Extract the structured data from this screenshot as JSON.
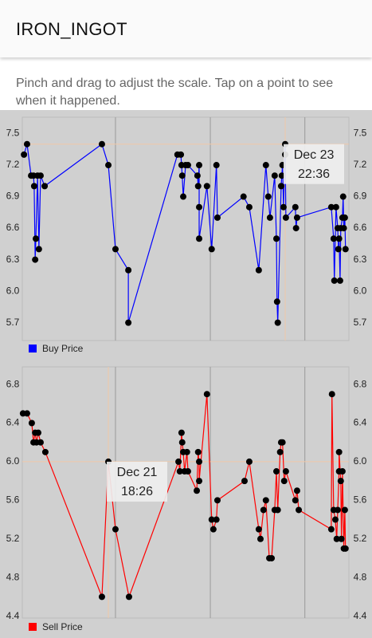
{
  "header": {
    "title": "IRON_INGOT"
  },
  "instructions": "Pinch and drag to adjust the scale. Tap on a point to see when it happened.",
  "chart_data": [
    {
      "type": "line",
      "legend": "bottom-left",
      "grid": "x",
      "marker_color": "#000000",
      "xlim": [
        0,
        96.4
      ],
      "xticks": [
        27.5,
        55.5,
        83.4
      ],
      "ylim": [
        5.53,
        7.58
      ],
      "yticks": [
        7.5,
        7.2,
        6.9,
        6.6,
        6.3,
        {
          "value": 6.0,
          "label": "6.0"
        },
        5.7
      ],
      "annotation": {
        "lines": [
          "Dec 23",
          "22:36"
        ],
        "x": 77.6,
        "y": 7.4
      },
      "series": [
        {
          "name": "Buy Price",
          "color": "#0000ff",
          "x": [
            0.5,
            1.4,
            2.6,
            3.3,
            3.5,
            3.8,
            4.0,
            4.5,
            4.9,
            5.4,
            6.6,
            23.5,
            25.4,
            27.5,
            31.3,
            31.3,
            45.8,
            46.8,
            47.0,
            47.2,
            47.5,
            48.2,
            48.9,
            51.7,
            51.9,
            52.2,
            52.2,
            52.2,
            54.5,
            55.9,
            57.3,
            57.6,
            65.3,
            67.0,
            69.8,
            71.9,
            72.6,
            73.1,
            74.5,
            75.0,
            75.2,
            75.4,
            76.4,
            76.6,
            76.8,
            77.1,
            77.6,
            77.6,
            77.8,
            80.6,
            80.8,
            81.1,
            91.2,
            91.9,
            92.1,
            92.6,
            93.1,
            93.3,
            93.5,
            93.8,
            94.0,
            94.5,
            94.7,
            94.9,
            95.2,
            95.4
          ],
          "values": [
            7.3,
            7.4,
            7.1,
            7.1,
            7.0,
            6.3,
            6.5,
            7.1,
            6.4,
            7.1,
            7.0,
            7.4,
            7.2,
            6.4,
            6.2,
            5.7,
            7.3,
            7.3,
            7.2,
            7.1,
            6.9,
            7.2,
            7.2,
            7.1,
            7.0,
            7.2,
            6.8,
            6.5,
            7.0,
            6.4,
            7.2,
            6.7,
            6.9,
            6.8,
            6.2,
            7.2,
            6.9,
            6.7,
            7.1,
            6.5,
            5.9,
            5.7,
            7.0,
            7.1,
            7.2,
            6.8,
            7.4,
            7.3,
            6.7,
            6.8,
            6.6,
            6.7,
            6.8,
            6.5,
            6.1,
            6.8,
            6.6,
            6.4,
            6.5,
            6.1,
            6.6,
            6.7,
            6.9,
            6.6,
            6.7,
            6.4
          ]
        }
      ]
    },
    {
      "type": "line",
      "legend": "bottom-left",
      "grid": "x",
      "marker_color": "#000000",
      "xlim": [
        0,
        96.4
      ],
      "xticks": [
        27.5,
        55.5,
        83.4
      ],
      "ylim": [
        4.38,
        6.9
      ],
      "yticks": [
        6.8,
        6.4,
        {
          "value": 6.0,
          "label": "6.0"
        },
        5.6,
        5.2,
        4.8,
        4.4
      ],
      "annotation": {
        "lines": [
          "Dec 21",
          "18:26"
        ],
        "x": 25.4,
        "y": 6.0
      },
      "series": [
        {
          "name": "Sell Price",
          "color": "#ff0000",
          "x": [
            0.2,
            1.4,
            2.8,
            3.3,
            3.8,
            4.2,
            4.7,
            5.4,
            6.8,
            23.5,
            25.4,
            27.5,
            31.5,
            46.1,
            46.5,
            47.0,
            47.2,
            47.5,
            47.9,
            48.6,
            48.9,
            51.5,
            51.9,
            52.2,
            52.2,
            54.5,
            55.9,
            56.4,
            57.3,
            57.6,
            65.6,
            67.0,
            69.8,
            70.3,
            71.2,
            71.9,
            72.9,
            73.6,
            74.5,
            75.0,
            75.4,
            76.1,
            76.4,
            76.8,
            77.3,
            77.8,
            80.6,
            81.1,
            81.6,
            91.2,
            91.4,
            91.9,
            92.4,
            92.8,
            93.1,
            93.5,
            93.5,
            94.0,
            94.2,
            94.5,
            94.9,
            95.2,
            95.4
          ],
          "values": [
            6.5,
            6.5,
            6.4,
            6.2,
            6.3,
            6.2,
            6.3,
            6.2,
            6.1,
            4.6,
            6.0,
            5.3,
            4.6,
            6.0,
            5.9,
            6.3,
            6.2,
            6.1,
            5.9,
            6.1,
            5.9,
            5.7,
            6.1,
            6.0,
            5.8,
            6.7,
            5.4,
            5.3,
            5.4,
            5.6,
            5.8,
            6.0,
            5.3,
            5.2,
            5.5,
            5.6,
            5.0,
            5.0,
            5.5,
            5.9,
            5.5,
            6.1,
            6.2,
            6.2,
            5.8,
            5.9,
            5.6,
            5.7,
            5.5,
            5.3,
            6.7,
            5.5,
            5.4,
            5.2,
            5.5,
            5.9,
            6.1,
            5.8,
            5.2,
            5.9,
            5.1,
            5.5,
            5.1
          ]
        }
      ]
    }
  ]
}
